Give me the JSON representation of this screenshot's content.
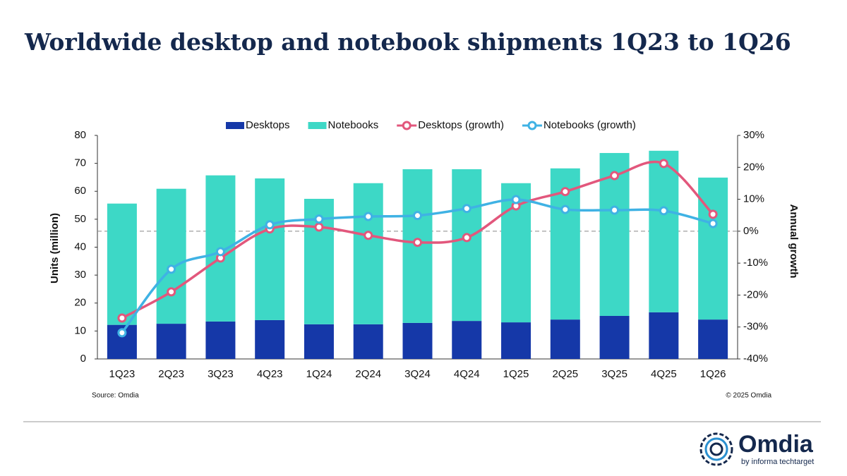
{
  "chart_data": {
    "type": "bar",
    "title": "Worldwide desktop and notebook shipments 1Q23 to 1Q26",
    "y_label": "Units (million)",
    "y2_label": "Annual growth",
    "source": "Source: Omdia",
    "copyright": "© 2025 Omdia",
    "logo": "Omdia",
    "logo_tagline": "by informa techtarget",
    "stacked": true,
    "categories": [
      "1Q23",
      "2Q23",
      "3Q23",
      "4Q23",
      "1Q24",
      "2Q24",
      "3Q24",
      "4Q24",
      "1Q25",
      "2Q25",
      "3Q25",
      "4Q25",
      "1Q26"
    ],
    "series": [
      {
        "name": "Desktops",
        "type": "bar",
        "color": "#1538a8",
        "values": [
          12.2,
          12.6,
          13.4,
          13.9,
          12.4,
          12.4,
          12.9,
          13.6,
          13.1,
          14.1,
          15.4,
          16.7,
          14.1
        ]
      },
      {
        "name": "Notebooks",
        "type": "bar",
        "color": "#3dd8c6",
        "values": [
          43.4,
          48.3,
          52.3,
          50.7,
          44.9,
          50.5,
          55.0,
          54.3,
          49.8,
          54.1,
          58.3,
          57.8,
          50.8
        ]
      },
      {
        "name": "Desktops (growth)",
        "type": "line",
        "axis": "y2",
        "color": "#e2577c",
        "values": [
          -27.2,
          -19.0,
          -8.4,
          0.7,
          1.3,
          -1.3,
          -3.5,
          -2.0,
          7.9,
          12.4,
          17.4,
          21.2,
          5.3
        ]
      },
      {
        "name": "Notebooks (growth)",
        "type": "line",
        "axis": "y2",
        "color": "#3fb2e4",
        "values": [
          -31.8,
          -11.9,
          -6.4,
          2.0,
          3.8,
          4.6,
          4.9,
          7.1,
          9.9,
          6.8,
          6.6,
          6.4,
          2.4
        ]
      }
    ],
    "ylim": [
      0,
      80
    ],
    "yticks": [
      0,
      10,
      20,
      30,
      40,
      50,
      60,
      70,
      80
    ],
    "y2lim": [
      -40,
      30
    ],
    "y2ticks": [
      {
        "value": -40,
        "label": "-40%"
      },
      {
        "value": -30,
        "label": "-30%"
      },
      {
        "value": -20,
        "label": "-20%"
      },
      {
        "value": -10,
        "label": "-10%"
      },
      {
        "value": 0,
        "label": "0%"
      },
      {
        "value": 10,
        "label": "10%"
      },
      {
        "value": 20,
        "label": "20%"
      },
      {
        "value": 30,
        "label": "30%"
      }
    ],
    "legend": "top"
  }
}
